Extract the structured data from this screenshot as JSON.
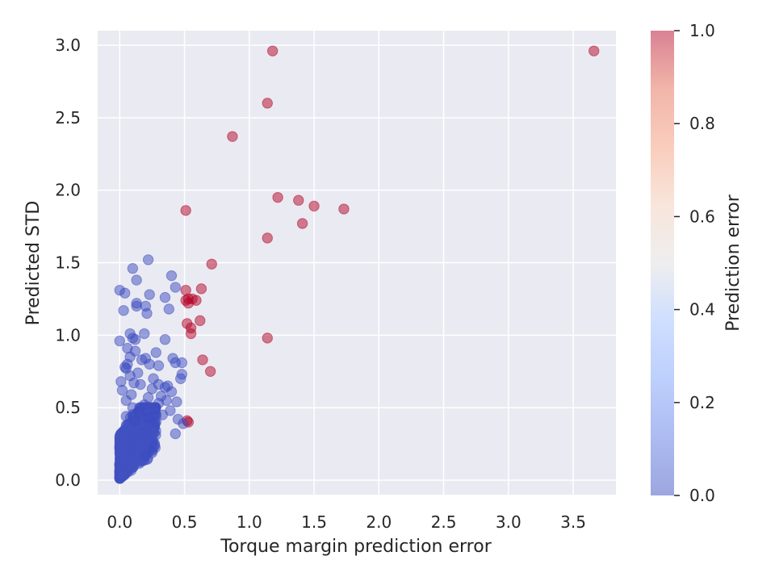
{
  "chart_data": {
    "type": "scatter",
    "xlabel": "Torque margin prediction error",
    "ylabel": "Predicted STD",
    "xlim": [
      -0.17,
      3.83
    ],
    "ylim": [
      -0.1,
      3.1
    ],
    "xticks": [
      0.0,
      0.5,
      1.0,
      1.5,
      2.0,
      2.5,
      3.0,
      3.5
    ],
    "xtick_labels": [
      "0.0",
      "0.5",
      "1.0",
      "1.5",
      "2.0",
      "2.5",
      "3.0",
      "3.5"
    ],
    "yticks": [
      0.0,
      0.5,
      1.0,
      1.5,
      2.0,
      2.5,
      3.0
    ],
    "ytick_labels": [
      "0.0",
      "0.5",
      "1.0",
      "1.5",
      "2.0",
      "2.5",
      "3.0"
    ],
    "grid": true,
    "colormap": "coolwarm",
    "colorbar": {
      "label": "Prediction error",
      "range": [
        0.0,
        1.0
      ],
      "ticks": [
        0.0,
        0.2,
        0.4,
        0.6,
        0.8,
        1.0
      ],
      "tick_labels": [
        "0.0",
        "0.2",
        "0.4",
        "0.6",
        "0.8",
        "1.0"
      ]
    },
    "colors": {
      "background": "#eaeaf2",
      "grid": "#ffffff",
      "low": "#3b4cc0",
      "mid": "#dddddd",
      "high": "#b40426"
    },
    "marker_opacity": 0.5,
    "points": [
      [
        3.66,
        2.96,
        1
      ],
      [
        1.18,
        2.96,
        1
      ],
      [
        1.14,
        2.6,
        1
      ],
      [
        0.87,
        2.37,
        1
      ],
      [
        1.22,
        1.95,
        1
      ],
      [
        1.38,
        1.93,
        1
      ],
      [
        1.5,
        1.89,
        1
      ],
      [
        1.73,
        1.87,
        1
      ],
      [
        0.51,
        1.86,
        1
      ],
      [
        1.41,
        1.77,
        1
      ],
      [
        1.14,
        1.67,
        1
      ],
      [
        0.71,
        1.49,
        1
      ],
      [
        0.63,
        1.32,
        1
      ],
      [
        0.51,
        1.31,
        1
      ],
      [
        0.53,
        1.25,
        1
      ],
      [
        0.56,
        1.25,
        1
      ],
      [
        0.59,
        1.24,
        1
      ],
      [
        0.51,
        1.24,
        1
      ],
      [
        0.53,
        1.22,
        1
      ],
      [
        0.62,
        1.1,
        1
      ],
      [
        0.52,
        1.08,
        1
      ],
      [
        0.55,
        1.05,
        1
      ],
      [
        0.55,
        1.01,
        1
      ],
      [
        1.14,
        0.98,
        1
      ],
      [
        0.64,
        0.83,
        1
      ],
      [
        0.7,
        0.75,
        1
      ],
      [
        0.52,
        0.41,
        1
      ],
      [
        0.53,
        0.4,
        1
      ],
      [
        0.22,
        1.52,
        0
      ],
      [
        0.1,
        1.46,
        0
      ],
      [
        0.4,
        1.41,
        0
      ],
      [
        0.13,
        1.38,
        0
      ],
      [
        0.43,
        1.33,
        0
      ],
      [
        0.0,
        1.31,
        0
      ],
      [
        0.04,
        1.29,
        0
      ],
      [
        0.23,
        1.28,
        0
      ],
      [
        0.35,
        1.26,
        0
      ],
      [
        0.13,
        1.22,
        0
      ],
      [
        0.13,
        1.2,
        0
      ],
      [
        0.2,
        1.2,
        0
      ],
      [
        0.38,
        1.18,
        0
      ],
      [
        0.03,
        1.17,
        0
      ],
      [
        0.21,
        1.15,
        0
      ],
      [
        0.19,
        1.01,
        0
      ],
      [
        0.08,
        1.01,
        0
      ],
      [
        0.1,
        0.98,
        0
      ],
      [
        0.35,
        0.97,
        0
      ],
      [
        0.12,
        0.97,
        0
      ],
      [
        0.0,
        0.96,
        0
      ],
      [
        0.06,
        0.91,
        0
      ],
      [
        0.12,
        0.89,
        0
      ],
      [
        0.28,
        0.88,
        0
      ],
      [
        0.08,
        0.85,
        0
      ],
      [
        0.41,
        0.84,
        0
      ],
      [
        0.2,
        0.84,
        0
      ],
      [
        0.17,
        0.83,
        0
      ],
      [
        0.43,
        0.81,
        0
      ],
      [
        0.48,
        0.81,
        0
      ],
      [
        0.06,
        0.8,
        0
      ],
      [
        0.23,
        0.8,
        0
      ],
      [
        0.3,
        0.79,
        0
      ],
      [
        0.04,
        0.78,
        0
      ],
      [
        0.05,
        0.77,
        0
      ],
      [
        0.14,
        0.74,
        0
      ],
      [
        0.48,
        0.73,
        0
      ],
      [
        0.08,
        0.72,
        0
      ],
      [
        0.26,
        0.7,
        0
      ],
      [
        0.47,
        0.7,
        0
      ],
      [
        0.01,
        0.68,
        0
      ],
      [
        0.11,
        0.67,
        0
      ],
      [
        0.16,
        0.66,
        0
      ],
      [
        0.3,
        0.66,
        0
      ],
      [
        0.37,
        0.65,
        0
      ],
      [
        0.35,
        0.64,
        0
      ],
      [
        0.25,
        0.63,
        0
      ],
      [
        0.02,
        0.62,
        0
      ],
      [
        0.4,
        0.61,
        0
      ],
      [
        0.09,
        0.59,
        0
      ],
      [
        0.32,
        0.58,
        0
      ],
      [
        0.22,
        0.57,
        0
      ],
      [
        0.05,
        0.55,
        0
      ],
      [
        0.36,
        0.55,
        0
      ],
      [
        0.44,
        0.54,
        0
      ],
      [
        0.3,
        0.53,
        0
      ],
      [
        0.19,
        0.52,
        0
      ],
      [
        0.1,
        0.5,
        0
      ],
      [
        0.27,
        0.49,
        0
      ],
      [
        0.39,
        0.48,
        0
      ],
      [
        0.15,
        0.47,
        0
      ],
      [
        0.33,
        0.45,
        0
      ],
      [
        0.05,
        0.44,
        0
      ],
      [
        0.22,
        0.43,
        0
      ],
      [
        0.45,
        0.42,
        0
      ],
      [
        0.12,
        0.41,
        0
      ],
      [
        0.28,
        0.4,
        0
      ],
      [
        0.49,
        0.39,
        0
      ],
      [
        0.43,
        0.32,
        0
      ],
      [
        0.27,
        0.24,
        0
      ],
      [
        0.25,
        0.19,
        0
      ],
      [
        0.2,
        0.17,
        0
      ]
    ]
  }
}
